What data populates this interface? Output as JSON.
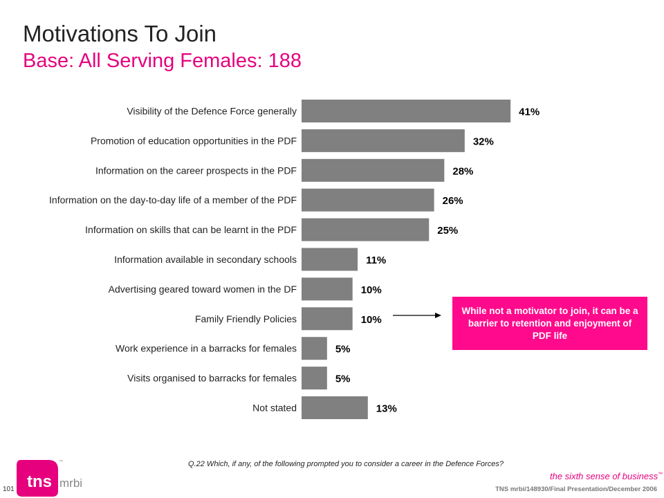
{
  "header": {
    "title": "Motivations To Join",
    "subtitle": "Base:  All Serving Females:  188"
  },
  "chart_data": {
    "type": "bar",
    "orientation": "horizontal",
    "categories": [
      "Visibility of the Defence Force generally",
      "Promotion of education opportunities in the PDF",
      "Information on the career prospects in the PDF",
      "Information on the day-to-day life of a member of the PDF",
      "Information on skills that can be learnt in the PDF",
      "Information available in secondary schools",
      "Advertising geared toward women in the DF",
      "Family Friendly Policies",
      "Work experience in a barracks for females",
      "Visits organised to barracks for females",
      "Not stated"
    ],
    "values": [
      41,
      32,
      28,
      26,
      25,
      11,
      10,
      10,
      5,
      5,
      13
    ],
    "value_labels": [
      "41%",
      "32%",
      "28%",
      "26%",
      "25%",
      "11%",
      "10%",
      "10%",
      "5%",
      "5%",
      "13%"
    ],
    "xlim": [
      0,
      45
    ],
    "grid": false,
    "bar_color": "#808080"
  },
  "callout": {
    "text": "While not a motivator to join, it can be a barrier to retention and enjoyment of PDF life",
    "color": "#ff0a8c",
    "points_to": "Family Friendly Policies"
  },
  "footer": {
    "question": "Q.22 Which, if any, of the following prompted you to consider a career in the Defence Forces?",
    "page_number": "101",
    "logo_text": "tns",
    "logo_sub": "mrbi",
    "logo_tm": "™",
    "tagline": "the sixth sense of business",
    "tagline_tm": "™",
    "reference": "TNS mrbi/148930/Final Presentation/December 2006"
  }
}
